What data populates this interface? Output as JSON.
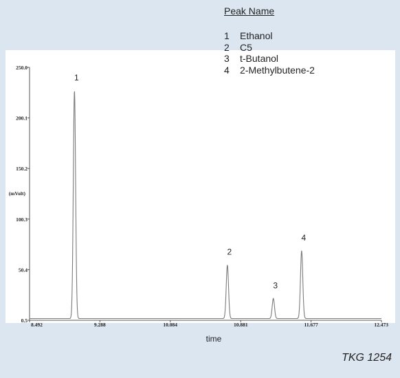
{
  "chart_data": {
    "type": "line",
    "xlabel": "time",
    "ylabel": "(mVolt)",
    "xlim": [
      8.492,
      12.473
    ],
    "ylim": [
      0.5,
      250.0
    ],
    "x_ticks": [
      "8.492",
      "9.288",
      "10.084",
      "10.881",
      "11.677",
      "12.473"
    ],
    "y_ticks": [
      "0.5",
      "50.4",
      "100.3",
      "150.2",
      "200.1",
      "250.0"
    ],
    "grid": false,
    "baseline": 2.2,
    "peaks": [
      {
        "label": "1",
        "x": 9.0,
        "height": 227.0
      },
      {
        "label": "2",
        "x": 10.73,
        "height": 55.0
      },
      {
        "label": "3",
        "x": 11.25,
        "height": 22.0
      },
      {
        "label": "4",
        "x": 11.57,
        "height": 69.0
      }
    ]
  },
  "legend": {
    "title": "Peak Name",
    "items": [
      {
        "num": "1",
        "name": "Ethanol"
      },
      {
        "num": "2",
        "name": "C5"
      },
      {
        "num": "3",
        "name": "t-Butanol"
      },
      {
        "num": "4",
        "name": "2-Methylbutene-2"
      }
    ]
  },
  "stamp": "TKG 1254"
}
